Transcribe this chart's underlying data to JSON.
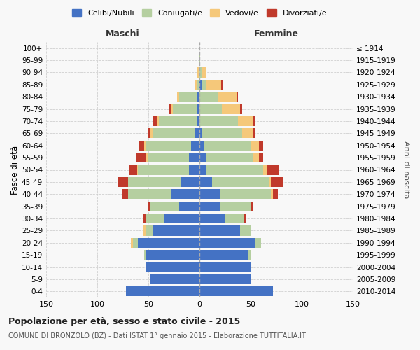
{
  "age_groups": [
    "0-4",
    "5-9",
    "10-14",
    "15-19",
    "20-24",
    "25-29",
    "30-34",
    "35-39",
    "40-44",
    "45-49",
    "50-54",
    "55-59",
    "60-64",
    "65-69",
    "70-74",
    "75-79",
    "80-84",
    "85-89",
    "90-94",
    "95-99",
    "100+"
  ],
  "birth_years": [
    "2010-2014",
    "2005-2009",
    "2000-2004",
    "1995-1999",
    "1990-1994",
    "1985-1989",
    "1980-1984",
    "1975-1979",
    "1970-1974",
    "1965-1969",
    "1960-1964",
    "1955-1959",
    "1950-1954",
    "1945-1949",
    "1940-1944",
    "1935-1939",
    "1930-1934",
    "1925-1929",
    "1920-1924",
    "1915-1919",
    "≤ 1914"
  ],
  "maschi": {
    "celibi": [
      72,
      48,
      52,
      52,
      60,
      45,
      35,
      20,
      28,
      18,
      10,
      10,
      8,
      4,
      2,
      2,
      2,
      0,
      0,
      0,
      0
    ],
    "coniugati": [
      0,
      0,
      0,
      2,
      5,
      8,
      18,
      28,
      42,
      52,
      50,
      40,
      44,
      42,
      38,
      24,
      18,
      3,
      1,
      0,
      0
    ],
    "vedovi": [
      0,
      0,
      0,
      0,
      2,
      2,
      0,
      0,
      0,
      0,
      1,
      2,
      2,
      2,
      2,
      2,
      2,
      2,
      1,
      0,
      0
    ],
    "divorziati": [
      0,
      0,
      0,
      0,
      0,
      0,
      2,
      2,
      5,
      10,
      8,
      10,
      5,
      2,
      4,
      2,
      0,
      0,
      0,
      0,
      0
    ]
  },
  "femmine": {
    "nubili": [
      72,
      50,
      50,
      48,
      55,
      40,
      25,
      20,
      20,
      12,
      6,
      6,
      4,
      2,
      0,
      0,
      0,
      2,
      0,
      0,
      0
    ],
    "coniugate": [
      0,
      0,
      0,
      2,
      5,
      10,
      18,
      30,
      50,
      56,
      56,
      46,
      46,
      40,
      38,
      22,
      18,
      4,
      2,
      1,
      0
    ],
    "vedove": [
      0,
      0,
      0,
      0,
      0,
      0,
      0,
      0,
      2,
      2,
      4,
      6,
      8,
      10,
      14,
      18,
      18,
      15,
      5,
      0,
      0
    ],
    "divorziate": [
      0,
      0,
      0,
      0,
      0,
      0,
      2,
      2,
      5,
      12,
      12,
      4,
      4,
      2,
      2,
      2,
      2,
      2,
      0,
      0,
      0
    ]
  },
  "colors": {
    "celibi": "#4472c4",
    "coniugati": "#b5cfa0",
    "vedovi": "#f5c87a",
    "divorziati": "#c0392b"
  },
  "xlim": 150,
  "title": "Popolazione per età, sesso e stato civile - 2015",
  "subtitle": "COMUNE DI BRONZOLO (BZ) - Dati ISTAT 1° gennaio 2015 - Elaborazione TUTTITALIA.IT",
  "ylabel_left": "Fasce di età",
  "ylabel_right": "Anni di nascita",
  "xlabel_maschi": "Maschi",
  "xlabel_femmine": "Femmine",
  "legend_labels": [
    "Celibi/Nubili",
    "Coniugati/e",
    "Vedovi/e",
    "Divorziati/e"
  ],
  "background_color": "#f8f8f8",
  "grid_color": "#cccccc"
}
